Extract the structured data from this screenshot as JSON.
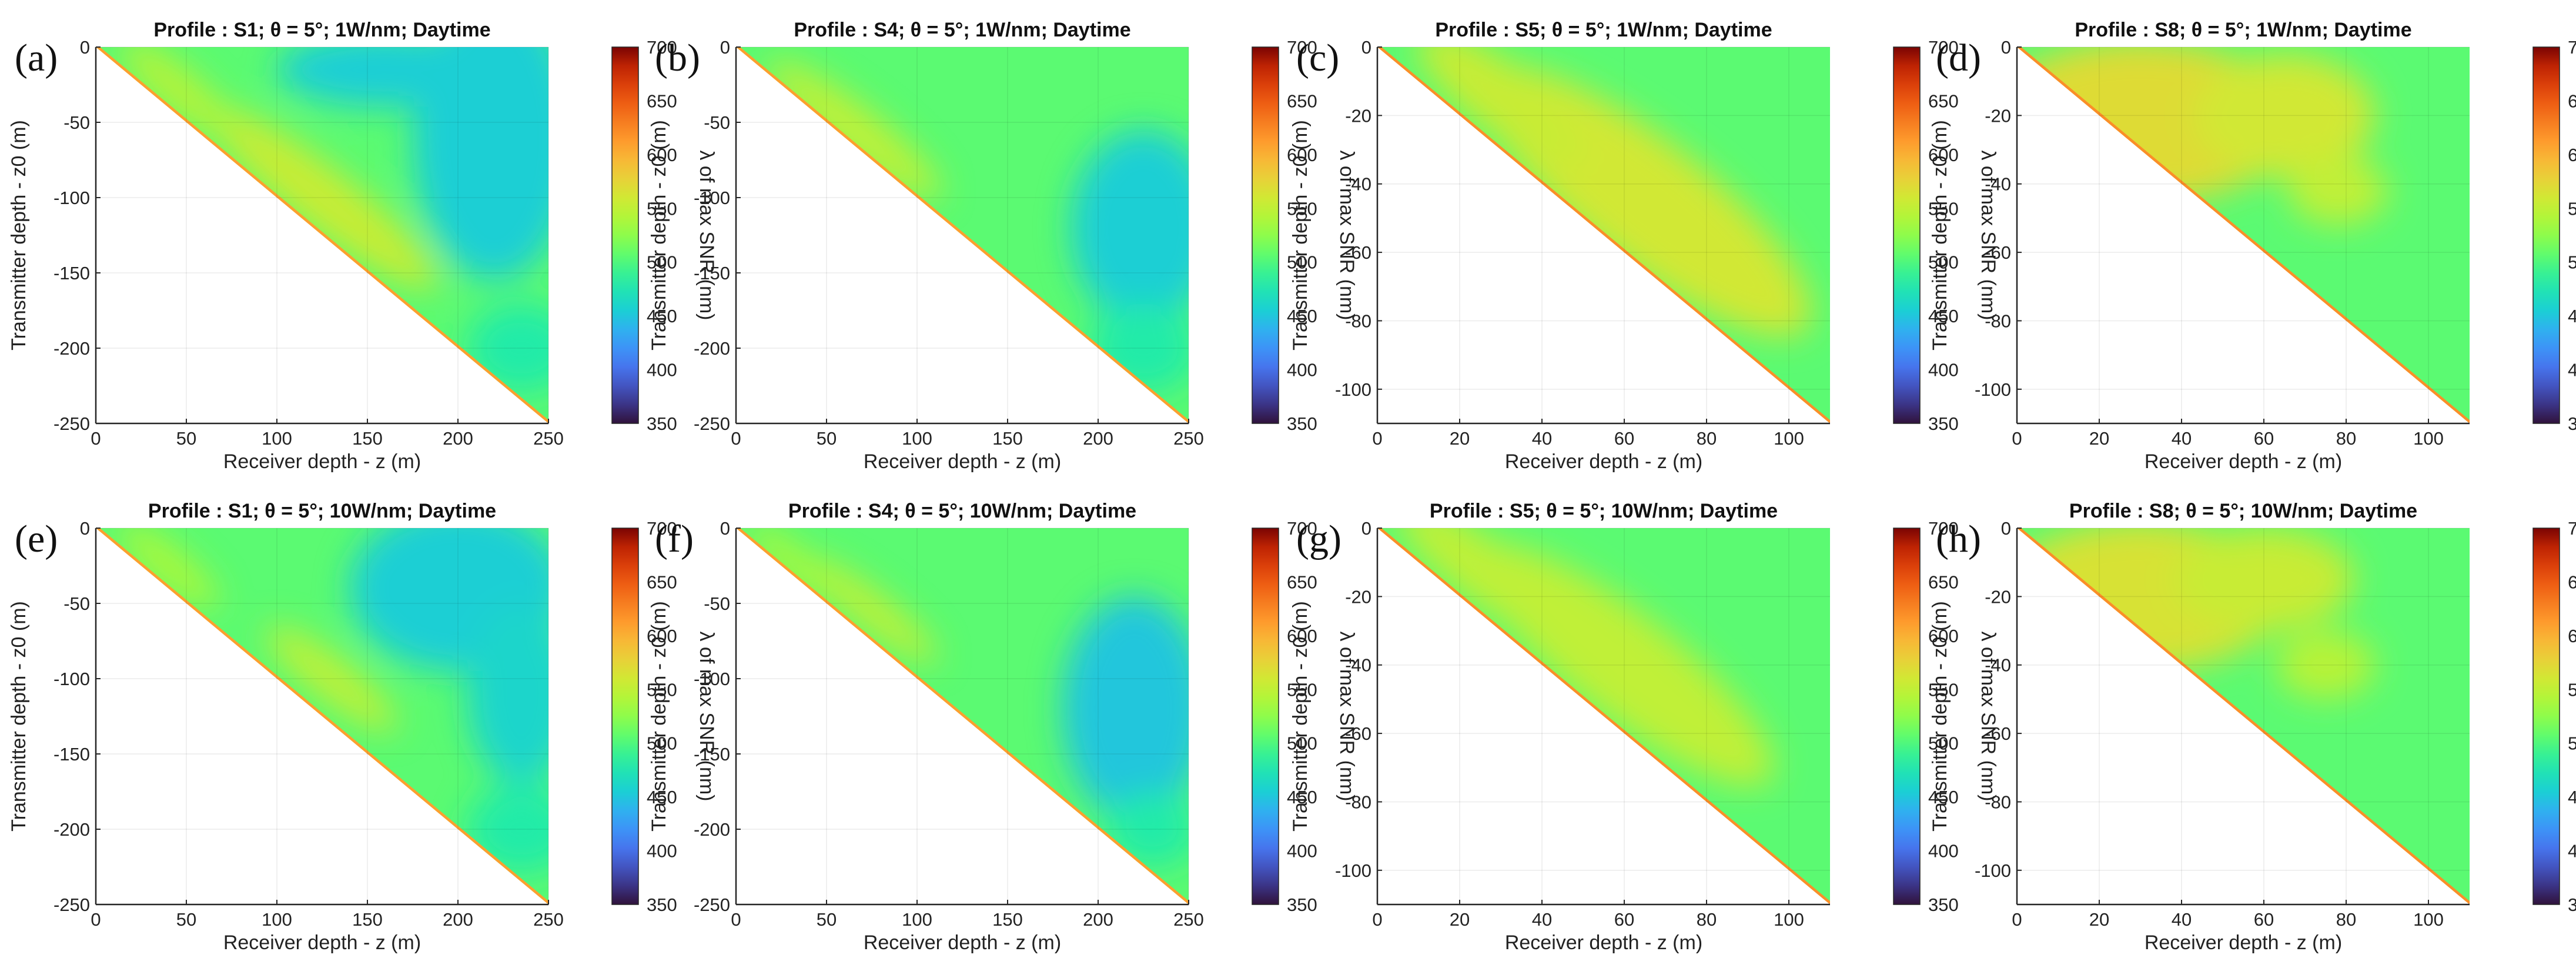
{
  "colormap": "turbo",
  "colorbar": {
    "label": "λ of max SNR (nm)",
    "range": [
      350,
      700
    ],
    "ticks": [
      350,
      400,
      450,
      500,
      550,
      600,
      650,
      700
    ]
  },
  "chart_data": [
    {
      "letter": "(a)",
      "type": "heatmap",
      "title": "Profile : S1; θ = 5°; 1W/nm; Daytime",
      "xlabel": "Receiver depth - z (m)",
      "ylabel": "Transmitter depth - z0 (m)",
      "xlim": [
        0,
        250
      ],
      "ylim": [
        -250,
        0
      ],
      "xticks": [
        0,
        50,
        100,
        150,
        200,
        250
      ],
      "yticks": [
        0,
        -50,
        -100,
        -150,
        -200,
        -250
      ],
      "background": 505,
      "diagonal": 610,
      "features": [
        {
          "kind": "blob",
          "center": [
            125,
            -100
          ],
          "rx": 80,
          "ry": 20,
          "angle": 38,
          "value": 555
        },
        {
          "kind": "blob",
          "center": [
            45,
            -28
          ],
          "rx": 40,
          "ry": 14,
          "angle": 40,
          "value": 545
        },
        {
          "kind": "blob",
          "center": [
            220,
            -60
          ],
          "rx": 45,
          "ry": 95,
          "angle": 0,
          "value": 455
        },
        {
          "kind": "blob",
          "center": [
            160,
            -15
          ],
          "rx": 60,
          "ry": 25,
          "angle": 0,
          "value": 455
        },
        {
          "kind": "blob",
          "center": [
            235,
            -200
          ],
          "rx": 30,
          "ry": 30,
          "angle": 0,
          "value": 480
        }
      ]
    },
    {
      "letter": "(b)",
      "type": "heatmap",
      "title": "Profile : S4; θ = 5°; 1W/nm; Daytime",
      "xlabel": "Receiver depth - z (m)",
      "ylabel": "Transmitter depth - z0 (m)",
      "xlim": [
        0,
        250
      ],
      "ylim": [
        -250,
        0
      ],
      "xticks": [
        0,
        50,
        100,
        150,
        200,
        250
      ],
      "yticks": [
        0,
        -50,
        -100,
        -150,
        -200,
        -250
      ],
      "background": 505,
      "diagonal": 610,
      "features": [
        {
          "kind": "blob",
          "center": [
            65,
            -55
          ],
          "rx": 60,
          "ry": 16,
          "angle": 38,
          "value": 550
        },
        {
          "kind": "blob",
          "center": [
            225,
            -120
          ],
          "rx": 40,
          "ry": 65,
          "angle": 0,
          "value": 455
        },
        {
          "kind": "blob",
          "center": [
            225,
            -200
          ],
          "rx": 30,
          "ry": 30,
          "angle": 0,
          "value": 480
        }
      ]
    },
    {
      "letter": "(c)",
      "type": "heatmap",
      "title": "Profile : S5; θ = 5°; 1W/nm; Daytime",
      "xlabel": "Receiver depth - z (m)",
      "ylabel": "Transmitter depth - z0 (m)",
      "xlim": [
        0,
        110
      ],
      "ylim": [
        -110,
        0
      ],
      "xticks": [
        0,
        20,
        40,
        60,
        80,
        100
      ],
      "yticks": [
        0,
        -20,
        -40,
        -60,
        -80,
        -100
      ],
      "background": 505,
      "diagonal": 620,
      "features": [
        {
          "kind": "blob",
          "center": [
            65,
            -45
          ],
          "rx": 50,
          "ry": 18,
          "angle": 38,
          "value": 560
        },
        {
          "kind": "blob",
          "center": [
            30,
            -15
          ],
          "rx": 25,
          "ry": 10,
          "angle": 38,
          "value": 555
        }
      ]
    },
    {
      "letter": "(d)",
      "type": "heatmap",
      "title": "Profile : S8; θ = 5°; 1W/nm; Daytime",
      "xlabel": "Receiver depth - z (m)",
      "ylabel": "Transmitter depth - z0 (m)",
      "xlim": [
        0,
        110
      ],
      "ylim": [
        -110,
        0
      ],
      "xticks": [
        0,
        20,
        40,
        60,
        80,
        100
      ],
      "yticks": [
        0,
        -20,
        -40,
        -60,
        -80,
        -100
      ],
      "background": 505,
      "diagonal": 620,
      "features": [
        {
          "kind": "blob",
          "center": [
            30,
            -22
          ],
          "rx": 38,
          "ry": 24,
          "angle": 0,
          "value": 570
        },
        {
          "kind": "blob",
          "center": [
            65,
            -20
          ],
          "rx": 22,
          "ry": 18,
          "angle": 0,
          "value": 560
        },
        {
          "kind": "blob",
          "center": [
            78,
            -42
          ],
          "rx": 12,
          "ry": 10,
          "angle": 0,
          "value": 550
        }
      ]
    },
    {
      "letter": "(e)",
      "type": "heatmap",
      "title": "Profile : S1; θ = 5°; 10W/nm; Daytime",
      "xlabel": "Receiver depth - z (m)",
      "ylabel": "Transmitter depth - z0 (m)",
      "xlim": [
        0,
        250
      ],
      "ylim": [
        -250,
        0
      ],
      "xticks": [
        0,
        50,
        100,
        150,
        200,
        250
      ],
      "yticks": [
        0,
        -50,
        -100,
        -150,
        -200,
        -250
      ],
      "background": 505,
      "diagonal": 610,
      "features": [
        {
          "kind": "blob",
          "center": [
            130,
            -100
          ],
          "rx": 45,
          "ry": 14,
          "angle": 38,
          "value": 550
        },
        {
          "kind": "blob",
          "center": [
            40,
            -25
          ],
          "rx": 35,
          "ry": 12,
          "angle": 40,
          "value": 540
        },
        {
          "kind": "blob",
          "center": [
            200,
            -40
          ],
          "rx": 60,
          "ry": 55,
          "angle": 0,
          "value": 455
        },
        {
          "kind": "blob",
          "center": [
            235,
            -110
          ],
          "rx": 30,
          "ry": 60,
          "angle": 0,
          "value": 460
        },
        {
          "kind": "blob",
          "center": [
            235,
            -200
          ],
          "rx": 30,
          "ry": 30,
          "angle": 0,
          "value": 480
        }
      ]
    },
    {
      "letter": "(f)",
      "type": "heatmap",
      "title": "Profile : S4; θ = 5°; 10W/nm; Daytime",
      "xlabel": "Receiver depth - z (m)",
      "ylabel": "Transmitter depth - z0 (m)",
      "xlim": [
        0,
        250
      ],
      "ylim": [
        -250,
        0
      ],
      "xticks": [
        0,
        50,
        100,
        150,
        200,
        250
      ],
      "yticks": [
        0,
        -50,
        -100,
        -150,
        -200,
        -250
      ],
      "background": 505,
      "diagonal": 610,
      "features": [
        {
          "kind": "blob",
          "center": [
            75,
            -55
          ],
          "rx": 45,
          "ry": 12,
          "angle": 38,
          "value": 550
        },
        {
          "kind": "blob",
          "center": [
            30,
            -22
          ],
          "rx": 30,
          "ry": 10,
          "angle": 40,
          "value": 540
        },
        {
          "kind": "blob",
          "center": [
            220,
            -120
          ],
          "rx": 40,
          "ry": 75,
          "angle": 0,
          "value": 450
        },
        {
          "kind": "blob",
          "center": [
            230,
            -200
          ],
          "rx": 25,
          "ry": 25,
          "angle": 0,
          "value": 480
        }
      ]
    },
    {
      "letter": "(g)",
      "type": "heatmap",
      "title": "Profile : S5; θ = 5°; 10W/nm; Daytime",
      "xlabel": "Receiver depth - z (m)",
      "ylabel": "Transmitter depth - z0 (m)",
      "xlim": [
        0,
        110
      ],
      "ylim": [
        -110,
        0
      ],
      "xticks": [
        0,
        20,
        40,
        60,
        80,
        100
      ],
      "yticks": [
        0,
        -20,
        -40,
        -60,
        -80,
        -100
      ],
      "background": 505,
      "diagonal": 620,
      "features": [
        {
          "kind": "blob",
          "center": [
            60,
            -40
          ],
          "rx": 45,
          "ry": 15,
          "angle": 38,
          "value": 550
        },
        {
          "kind": "blob",
          "center": [
            25,
            -12
          ],
          "rx": 25,
          "ry": 9,
          "angle": 38,
          "value": 550
        }
      ]
    },
    {
      "letter": "(h)",
      "type": "heatmap",
      "title": "Profile : S8; θ = 5°; 10W/nm; Daytime",
      "xlabel": "Receiver depth - z (m)",
      "ylabel": "Transmitter depth - z0 (m)",
      "xlim": [
        0,
        110
      ],
      "ylim": [
        -110,
        0
      ],
      "xticks": [
        0,
        20,
        40,
        60,
        80,
        100
      ],
      "yticks": [
        0,
        -20,
        -40,
        -60,
        -80,
        -100
      ],
      "background": 505,
      "diagonal": 620,
      "features": [
        {
          "kind": "blob",
          "center": [
            30,
            -20
          ],
          "rx": 35,
          "ry": 22,
          "angle": 0,
          "value": 565
        },
        {
          "kind": "blob",
          "center": [
            60,
            -15
          ],
          "rx": 22,
          "ry": 15,
          "angle": 0,
          "value": 555
        },
        {
          "kind": "blob",
          "center": [
            75,
            -40
          ],
          "rx": 12,
          "ry": 10,
          "angle": 0,
          "value": 545
        }
      ]
    }
  ]
}
